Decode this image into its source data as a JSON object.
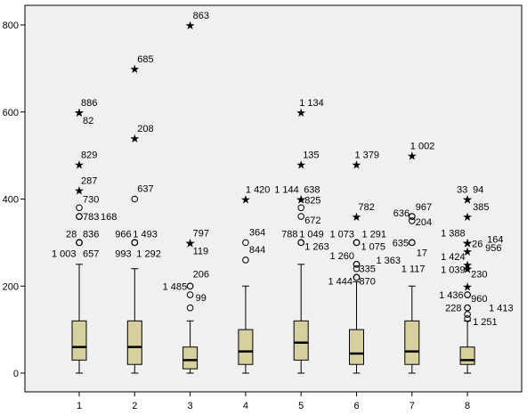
{
  "chart_data": {
    "type": "boxplot",
    "title": "",
    "xlabel": "",
    "ylabel": "",
    "ylim": [
      0,
      850
    ],
    "y_ticks": [
      "0",
      "200",
      "400",
      "600",
      "800"
    ],
    "categories": [
      "1",
      "2",
      "3",
      "4",
      "5",
      "6",
      "7",
      "8"
    ],
    "grid": false,
    "box_fill": "#d8cf9f",
    "plot_background": "#f0f0f0",
    "boxes": [
      {
        "category": "1",
        "min": 0,
        "q1": 30,
        "median": 60,
        "q3": 120,
        "max": 250
      },
      {
        "category": "2",
        "min": 0,
        "q1": 20,
        "median": 60,
        "q3": 120,
        "max": 240
      },
      {
        "category": "3",
        "min": 0,
        "q1": 10,
        "median": 30,
        "q3": 60,
        "max": 120
      },
      {
        "category": "4",
        "min": 0,
        "q1": 20,
        "median": 50,
        "q3": 100,
        "max": 200
      },
      {
        "category": "5",
        "min": 0,
        "q1": 30,
        "median": 70,
        "q3": 120,
        "max": 250
      },
      {
        "category": "6",
        "min": 0,
        "q1": 20,
        "median": 45,
        "q3": 100,
        "max": 210
      },
      {
        "category": "7",
        "min": 0,
        "q1": 20,
        "median": 50,
        "q3": 120,
        "max": 200
      },
      {
        "category": "8",
        "min": 0,
        "q1": 20,
        "median": 30,
        "q3": 60,
        "max": 120
      }
    ],
    "outliers": [
      {
        "category": "1",
        "value": 600,
        "kind": "extreme",
        "label": "886",
        "ldx": 2,
        "ldy": -7
      },
      {
        "category": "1",
        "value": 600,
        "kind": "extreme",
        "label": "82",
        "ldx": 4,
        "ldy": 13
      },
      {
        "category": "1",
        "value": 480,
        "kind": "extreme",
        "label": "829",
        "ldx": 2,
        "ldy": -7
      },
      {
        "category": "1",
        "value": 420,
        "kind": "extreme",
        "label": "287",
        "ldx": 2,
        "ldy": -7
      },
      {
        "category": "1",
        "value": 380,
        "kind": "outlier",
        "label": "730",
        "ldx": 4,
        "ldy": -6
      },
      {
        "category": "1",
        "value": 360,
        "kind": "outlier",
        "label": "783",
        "ldx": 4,
        "ldy": 4
      },
      {
        "category": "1",
        "value": 360,
        "kind": "outlier",
        "label": "168",
        "ldx": 24,
        "ldy": 4
      },
      {
        "category": "1",
        "value": 300,
        "kind": "outlier",
        "label": "28",
        "ldx": -15,
        "ldy": -6
      },
      {
        "category": "1",
        "value": 300,
        "kind": "outlier",
        "label": "836",
        "ldx": 4,
        "ldy": -6
      },
      {
        "category": "1",
        "value": 300,
        "kind": "outlier",
        "label": "1 003",
        "ldx": -31,
        "ldy": 16
      },
      {
        "category": "1",
        "value": 300,
        "kind": "outlier",
        "label": "657",
        "ldx": 4,
        "ldy": 16
      },
      {
        "category": "2",
        "value": 700,
        "kind": "extreme",
        "label": "685",
        "ldx": 3,
        "ldy": -7
      },
      {
        "category": "2",
        "value": 540,
        "kind": "extreme",
        "label": "208",
        "ldx": 3,
        "ldy": -7
      },
      {
        "category": "2",
        "value": 400,
        "kind": "outlier",
        "label": "637",
        "ldx": 3,
        "ldy": -8
      },
      {
        "category": "2",
        "value": 300,
        "kind": "outlier",
        "label": "966",
        "ldx": -22,
        "ldy": -6
      },
      {
        "category": "2",
        "value": 300,
        "kind": "outlier",
        "label": "1 493",
        "ldx": -2,
        "ldy": -6
      },
      {
        "category": "2",
        "value": 300,
        "kind": "outlier",
        "label": "993",
        "ldx": -22,
        "ldy": 16
      },
      {
        "category": "2",
        "value": 300,
        "kind": "outlier",
        "label": "1 292",
        "ldx": 2,
        "ldy": 16
      },
      {
        "category": "3",
        "value": 800,
        "kind": "extreme",
        "label": "863",
        "ldx": 3,
        "ldy": -7
      },
      {
        "category": "3",
        "value": 300,
        "kind": "extreme",
        "label": "797",
        "ldx": 3,
        "ldy": -7
      },
      {
        "category": "3",
        "value": 300,
        "kind": "extreme",
        "label": "119",
        "ldx": 3,
        "ldy": 13
      },
      {
        "category": "3",
        "value": 200,
        "kind": "outlier",
        "label": "206",
        "ldx": 3,
        "ldy": -10
      },
      {
        "category": "3",
        "value": 200,
        "kind": "outlier",
        "label": "1 485",
        "ldx": -31,
        "ldy": 4
      },
      {
        "category": "3",
        "value": 180,
        "kind": "outlier",
        "label": "99",
        "ldx": 6,
        "ldy": 7
      },
      {
        "category": "3",
        "value": 150,
        "kind": "outlier",
        "label": "",
        "ldx": 0,
        "ldy": 0
      },
      {
        "category": "4",
        "value": 400,
        "kind": "extreme",
        "label": "1 420",
        "ldx": 0,
        "ldy": -7
      },
      {
        "category": "4",
        "value": 300,
        "kind": "outlier",
        "label": "364",
        "ldx": 4,
        "ldy": -8
      },
      {
        "category": "4",
        "value": 260,
        "kind": "outlier",
        "label": "844",
        "ldx": 4,
        "ldy": -8
      },
      {
        "category": "5",
        "value": 600,
        "kind": "extreme",
        "label": "1 134",
        "ldx": -2,
        "ldy": -7
      },
      {
        "category": "5",
        "value": 480,
        "kind": "extreme",
        "label": "135",
        "ldx": 2,
        "ldy": -7
      },
      {
        "category": "5",
        "value": 400,
        "kind": "extreme",
        "label": "1 144",
        "ldx": -30,
        "ldy": -7
      },
      {
        "category": "5",
        "value": 400,
        "kind": "extreme",
        "label": "638",
        "ldx": 3,
        "ldy": -7
      },
      {
        "category": "5",
        "value": 380,
        "kind": "outlier",
        "label": "825",
        "ldx": 4,
        "ldy": -5
      },
      {
        "category": "5",
        "value": 360,
        "kind": "outlier",
        "label": "672",
        "ldx": 4,
        "ldy": 8
      },
      {
        "category": "5",
        "value": 300,
        "kind": "outlier",
        "label": "788",
        "ldx": -22,
        "ldy": -6
      },
      {
        "category": "5",
        "value": 300,
        "kind": "outlier",
        "label": "1 049",
        "ldx": -2,
        "ldy": -6
      },
      {
        "category": "5",
        "value": 300,
        "kind": "outlier",
        "label": "1 263",
        "ldx": 4,
        "ldy": 8
      },
      {
        "category": "6",
        "value": 480,
        "kind": "extreme",
        "label": "1 379",
        "ldx": -2,
        "ldy": -7
      },
      {
        "category": "6",
        "value": 360,
        "kind": "extreme",
        "label": "782",
        "ldx": 2,
        "ldy": -7
      },
      {
        "category": "6",
        "value": 300,
        "kind": "outlier",
        "label": "1 073",
        "ldx": -30,
        "ldy": -6
      },
      {
        "category": "6",
        "value": 300,
        "kind": "outlier",
        "label": "1 291",
        "ldx": 6,
        "ldy": -6
      },
      {
        "category": "6",
        "value": 300,
        "kind": "outlier",
        "label": "1 075",
        "ldx": 5,
        "ldy": 8
      },
      {
        "category": "6",
        "value": 250,
        "kind": "outlier",
        "label": "1 260",
        "ldx": -30,
        "ldy": -6
      },
      {
        "category": "6",
        "value": 250,
        "kind": "outlier",
        "label": "1 363",
        "ldx": 22,
        "ldy": -1
      },
      {
        "category": "6",
        "value": 240,
        "kind": "outlier",
        "label": "335",
        "ldx": 3,
        "ldy": 4
      },
      {
        "category": "6",
        "value": 220,
        "kind": "outlier",
        "label": "1 444",
        "ldx": -32,
        "ldy": 8
      },
      {
        "category": "6",
        "value": 220,
        "kind": "outlier",
        "label": "870",
        "ldx": 3,
        "ldy": 8
      },
      {
        "category": "7",
        "value": 500,
        "kind": "extreme",
        "label": "1 002",
        "ldx": -2,
        "ldy": -7
      },
      {
        "category": "7",
        "value": 360,
        "kind": "outlier",
        "label": "636",
        "ldx": -21,
        "ldy": 0
      },
      {
        "category": "7",
        "value": 360,
        "kind": "outlier",
        "label": "967",
        "ldx": 4,
        "ldy": -7
      },
      {
        "category": "7",
        "value": 350,
        "kind": "outlier",
        "label": "204",
        "ldx": 4,
        "ldy": 5
      },
      {
        "category": "7",
        "value": 300,
        "kind": "outlier",
        "label": "635",
        "ldx": -22,
        "ldy": 4
      },
      {
        "category": "7",
        "value": 300,
        "kind": "outlier",
        "label": "17",
        "ldx": 5,
        "ldy": 15
      },
      {
        "category": "7",
        "value": 300,
        "kind": "outlier",
        "label": "1 117",
        "ldx": -12,
        "ldy": 33
      },
      {
        "category": "8",
        "value": 400,
        "kind": "extreme",
        "label": "33",
        "ldx": -12,
        "ldy": -7
      },
      {
        "category": "8",
        "value": 400,
        "kind": "extreme",
        "label": "94",
        "ldx": 6,
        "ldy": -7
      },
      {
        "category": "8",
        "value": 360,
        "kind": "extreme",
        "label": "385",
        "ldx": 6,
        "ldy": -7
      },
      {
        "category": "8",
        "value": 300,
        "kind": "extreme",
        "label": "1 388",
        "ldx": -30,
        "ldy": -7
      },
      {
        "category": "8",
        "value": 300,
        "kind": "extreme",
        "label": "26",
        "ldx": 5,
        "ldy": 5
      },
      {
        "category": "8",
        "value": 300,
        "kind": "extreme",
        "label": "164",
        "ldx": 22,
        "ldy": 0
      },
      {
        "category": "8",
        "value": 280,
        "kind": "extreme",
        "label": "956",
        "ldx": 20,
        "ldy": 0
      },
      {
        "category": "8",
        "value": 250,
        "kind": "extreme",
        "label": "1 424",
        "ldx": -30,
        "ldy": -5
      },
      {
        "category": "8",
        "value": 240,
        "kind": "extreme",
        "label": "1 039",
        "ldx": -30,
        "ldy": 5
      },
      {
        "category": "8",
        "value": 240,
        "kind": "extreme",
        "label": "230",
        "ldx": 4,
        "ldy": 10
      },
      {
        "category": "8",
        "value": 200,
        "kind": "extreme",
        "label": "",
        "ldx": 0,
        "ldy": 0
      },
      {
        "category": "8",
        "value": 180,
        "kind": "outlier",
        "label": "1 436",
        "ldx": -32,
        "ldy": 4
      },
      {
        "category": "8",
        "value": 180,
        "kind": "outlier",
        "label": "960",
        "ldx": 4,
        "ldy": 8
      },
      {
        "category": "8",
        "value": 150,
        "kind": "outlier",
        "label": "228",
        "ldx": -25,
        "ldy": 4
      },
      {
        "category": "8",
        "value": 150,
        "kind": "outlier",
        "label": "1 413",
        "ldx": 24,
        "ldy": 4
      },
      {
        "category": "8",
        "value": 135,
        "kind": "outlier",
        "label": "1 251",
        "ldx": 6,
        "ldy": 12
      },
      {
        "category": "8",
        "value": 125,
        "kind": "outlier",
        "label": "",
        "ldx": 0,
        "ldy": 0
      }
    ]
  }
}
